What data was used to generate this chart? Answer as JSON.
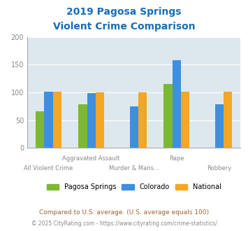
{
  "title_line1": "2019 Pagosa Springs",
  "title_line2": "Violent Crime Comparison",
  "categories": [
    "All Violent Crime",
    "Aggravated Assault",
    "Murder & Mans...",
    "Rape",
    "Robbery"
  ],
  "series": {
    "Pagosa Springs": [
      66,
      79,
      null,
      115,
      null
    ],
    "Colorado": [
      101,
      99,
      75,
      158,
      78
    ],
    "National": [
      101,
      100,
      100,
      101,
      101
    ]
  },
  "colors": {
    "Pagosa Springs": "#7db831",
    "Colorado": "#3d8fe0",
    "National": "#f5a623"
  },
  "ylim": [
    0,
    200
  ],
  "yticks": [
    0,
    50,
    100,
    150,
    200
  ],
  "background_color": "#dde8ee",
  "footer_text1": "Compared to U.S. average. (U.S. average equals 100)",
  "footer_text2": "© 2025 CityRating.com - https://www.cityrating.com/crime-statistics/",
  "title_color": "#1a6db5",
  "footer1_color": "#996633",
  "footer2_color": "#888888",
  "url_color": "#3d8fe0",
  "bar_width": 0.2,
  "group_positions": [
    0,
    1,
    2,
    3,
    4
  ]
}
